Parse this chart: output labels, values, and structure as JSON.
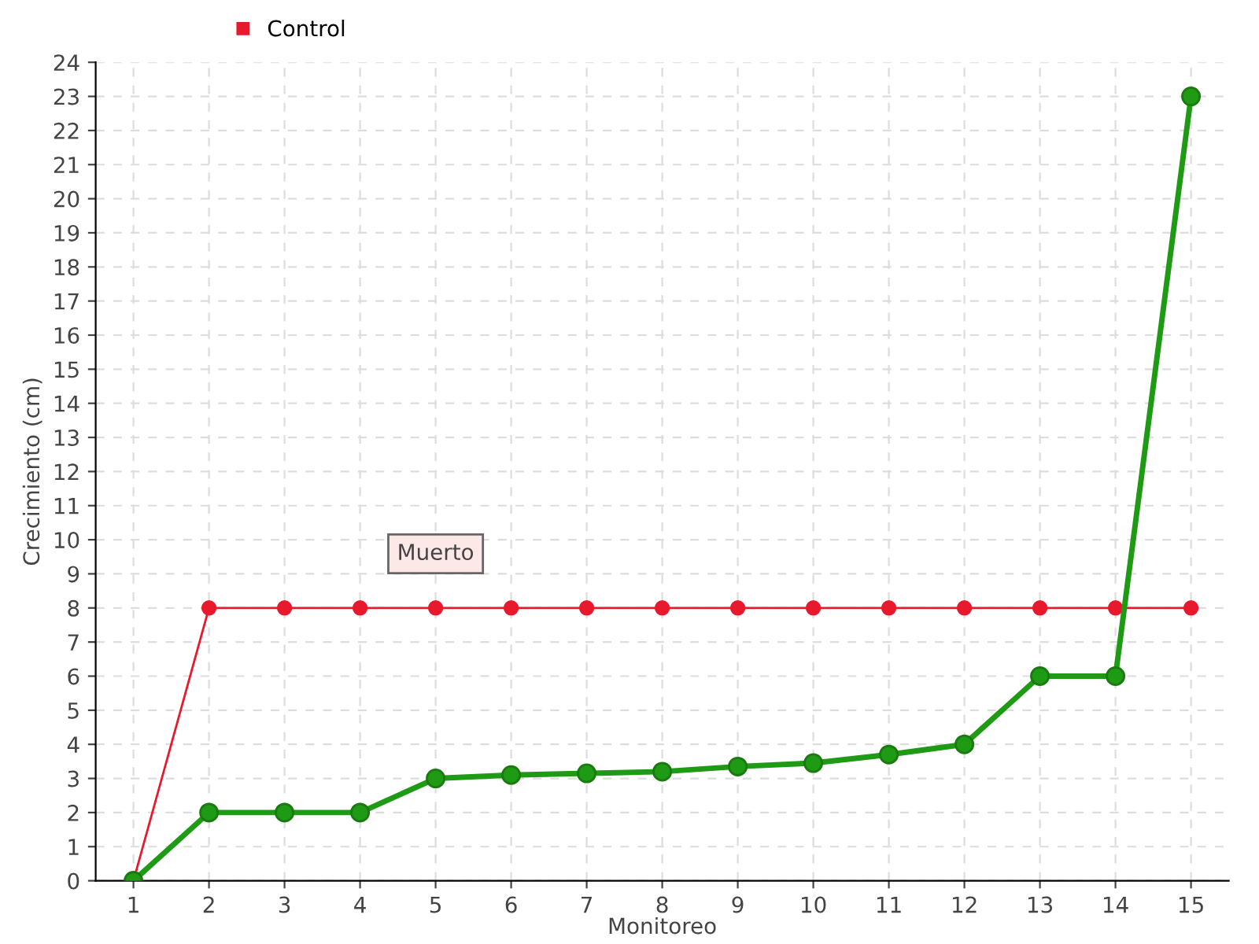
{
  "chart_data": {
    "type": "line",
    "xlabel": "Monitoreo",
    "ylabel": "Crecimiento (cm)",
    "categories": [
      "1",
      "2",
      "3",
      "4",
      "5",
      "6",
      "7",
      "8",
      "9",
      "10",
      "11",
      "12",
      "13",
      "14",
      "15"
    ],
    "series": [
      {
        "color": "#1f9a14",
        "values": [
          0,
          2,
          2,
          2,
          3,
          3.1,
          3.15,
          3.2,
          3.35,
          3.45,
          3.7,
          4,
          6,
          6,
          23
        ]
      },
      {
        "name": "Control",
        "color": "#e8192c",
        "values": [
          0,
          8,
          8,
          8,
          8,
          8,
          8,
          8,
          8,
          8,
          8,
          8,
          8,
          8,
          8
        ]
      }
    ],
    "ylim": [
      0,
      24
    ],
    "yticks": [
      0,
      1,
      2,
      3,
      4,
      5,
      6,
      7,
      8,
      9,
      10,
      11,
      12,
      13,
      14,
      15,
      16,
      17,
      18,
      19,
      20,
      21,
      22,
      23,
      24
    ],
    "annotations": [
      {
        "text": "Muerto",
        "x": "5",
        "y": 8
      }
    ],
    "grid": true,
    "legend": "top left",
    "marker": "circle",
    "line_style": "solid"
  }
}
